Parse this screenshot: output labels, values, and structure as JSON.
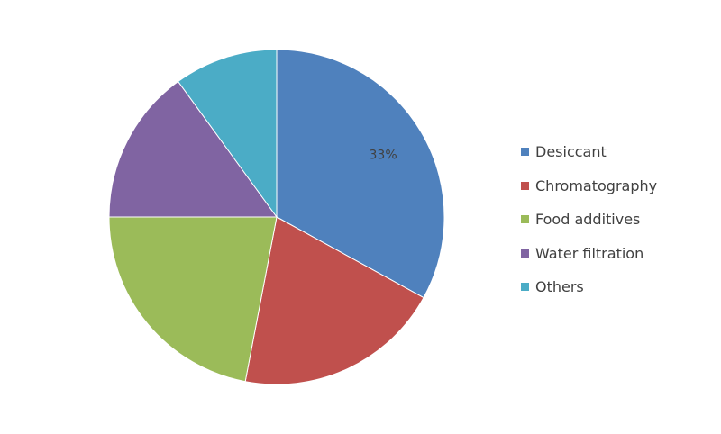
{
  "chart_data": {
    "type": "pie",
    "title": "",
    "legend_position": "right",
    "slices": [
      {
        "name": "Desiccant",
        "value": 33,
        "color": "#4f81bd",
        "label": "33%"
      },
      {
        "name": "Chromatography",
        "value": 20,
        "color": "#c0504d",
        "label": ""
      },
      {
        "name": "Food additives",
        "value": 22,
        "color": "#9bbb59",
        "label": ""
      },
      {
        "name": "Water filtration",
        "value": 15,
        "color": "#8064a2",
        "label": ""
      },
      {
        "name": "Others",
        "value": 10,
        "color": "#4bacc6",
        "label": ""
      }
    ]
  }
}
